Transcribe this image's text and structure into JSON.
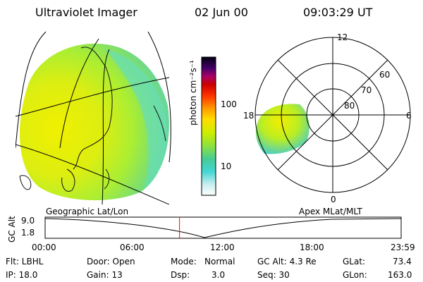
{
  "header": {
    "title": "Ultraviolet Imager",
    "date": "02 Jun 00",
    "time": "09:03:29 UT"
  },
  "colorbar": {
    "label": "photon cm⁻²s⁻¹",
    "ticks": [
      "100",
      "10"
    ],
    "colors": [
      "#ffffff",
      "#d8f0f0",
      "#9ee8e8",
      "#40d8d8",
      "#33cccc",
      "#66dd88",
      "#99ee44",
      "#ccee00",
      "#ffee00",
      "#ffcc00",
      "#ff9900",
      "#ff6600",
      "#ff2200",
      "#dd0000",
      "#aa0044",
      "#660088",
      "#330055",
      "#000022"
    ]
  },
  "polar_plot": {
    "clock_labels": [
      "12",
      "18",
      "6",
      "0"
    ],
    "lat_labels": [
      "60",
      "70",
      "80"
    ]
  },
  "projections": {
    "left": "Geographic Lat/Lon",
    "right": "Apex MLat/MLT"
  },
  "timeline": {
    "ylabel": "GC Alt",
    "yticks": [
      "9.0",
      "1.8"
    ],
    "xticks": [
      "00:00",
      "06:00",
      "12:00",
      "18:00",
      "23:59"
    ],
    "cursor_hours": 9.06,
    "cursor_color": "#ff0000"
  },
  "status": {
    "flt": "Flt: LBHL",
    "ip": "IP: 18.0",
    "door": "Door: Open",
    "gain": "Gain: 13",
    "mode_label": "Mode:",
    "mode_value": "Normal",
    "dsp_label": "Dsp:",
    "dsp_value": "3.0",
    "gcalt": "GC Alt: 4.3 Re",
    "seq": "Seq: 30",
    "glat_label": "GLat:",
    "glat_value": "73.4",
    "glon_label": "GLon:",
    "glon_value": "163.0"
  }
}
